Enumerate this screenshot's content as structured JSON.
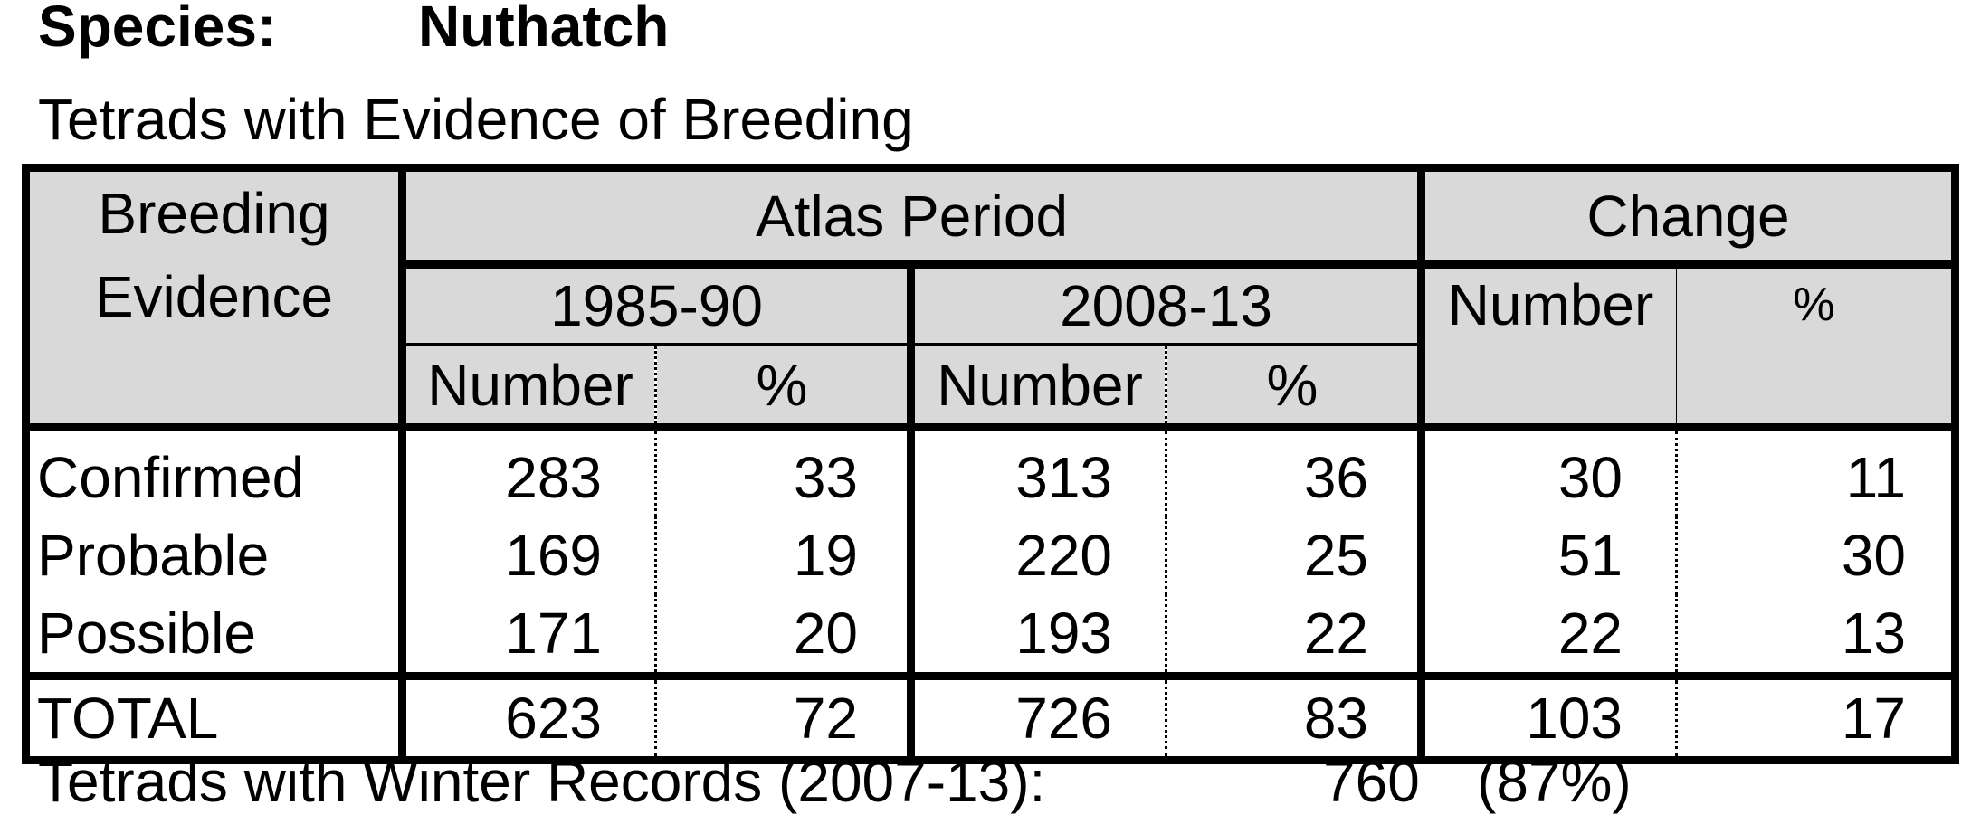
{
  "heading": {
    "species_label": "Species:",
    "species_name": "Nuthatch"
  },
  "subtitle": "Tetrads with Evidence of Breeding",
  "table": {
    "header": {
      "breeding_evidence": "Breeding Evidence",
      "atlas_period": "Atlas Period",
      "change": "Change",
      "period_1": "1985-90",
      "period_2": "2008-13",
      "number_label": "Number",
      "percent_label": "%"
    },
    "rows": [
      {
        "label": "Confirmed",
        "n1": "283",
        "p1": "33",
        "n2": "313",
        "p2": "36",
        "cn": "30",
        "cp": "11"
      },
      {
        "label": "Probable",
        "n1": "169",
        "p1": "19",
        "n2": "220",
        "p2": "25",
        "cn": "51",
        "cp": "30"
      },
      {
        "label": "Possible",
        "n1": "171",
        "p1": "20",
        "n2": "193",
        "p2": "22",
        "cn": "22",
        "cp": "13"
      }
    ],
    "total": {
      "label": "TOTAL",
      "n1": "623",
      "p1": "72",
      "n2": "726",
      "p2": "83",
      "cn": "103",
      "cp": "17"
    }
  },
  "footer": {
    "label": "Tetrads with Winter Records (2007-13):",
    "count": "760",
    "percent": "(87%)"
  }
}
